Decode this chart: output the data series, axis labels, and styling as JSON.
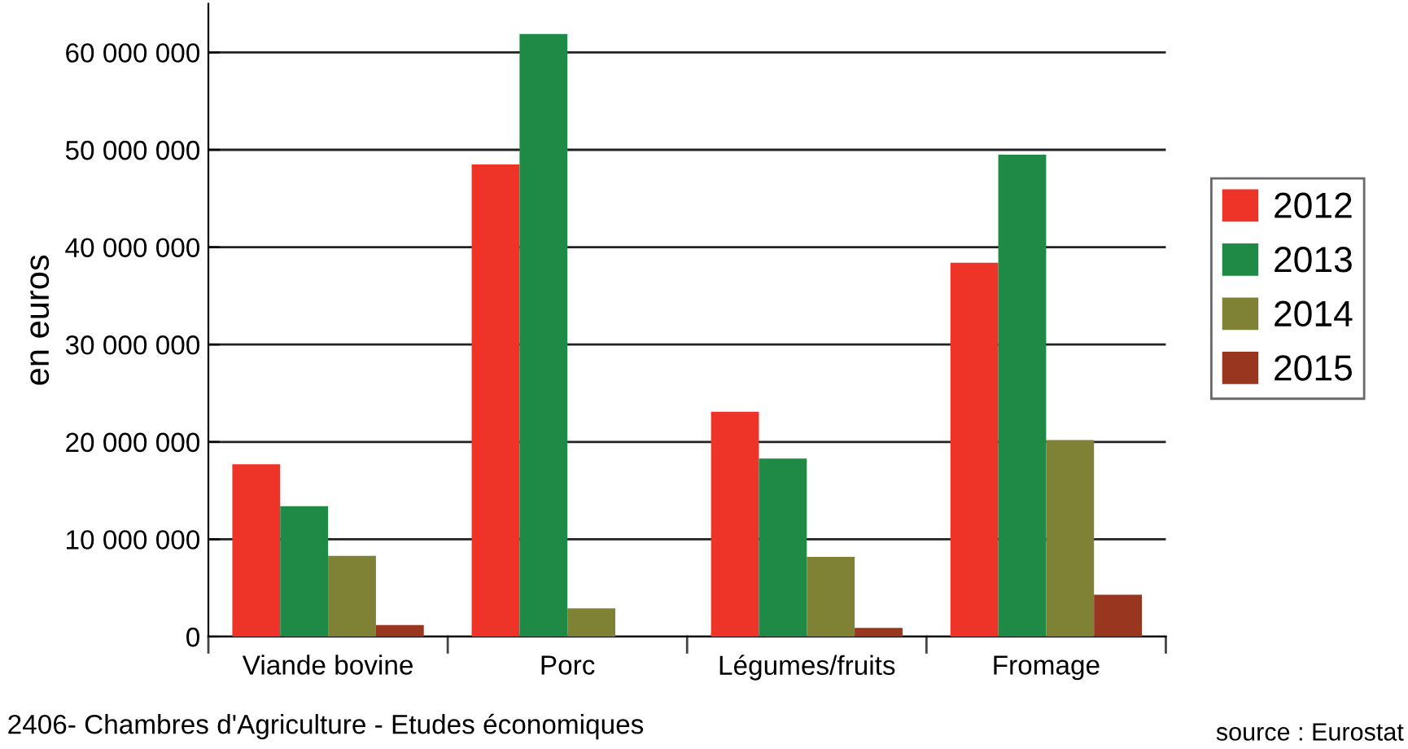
{
  "chart_data": {
    "type": "bar",
    "ylabel": "en euros",
    "categories": [
      "Viande bovine",
      "Porc",
      "Légumes/fruits",
      "Fromage"
    ],
    "series": [
      {
        "name": "2012",
        "color": "#ee3329",
        "values": [
          17700000,
          48500000,
          23100000,
          38400000
        ]
      },
      {
        "name": "2013",
        "color": "#1f8a45",
        "values": [
          13400000,
          61900000,
          18300000,
          49500000
        ]
      },
      {
        "name": "2014",
        "color": "#7f8234",
        "values": [
          8300000,
          2900000,
          8200000,
          20200000
        ]
      },
      {
        "name": "2015",
        "color": "#98361f",
        "values": [
          1200000,
          null,
          900000,
          4300000
        ]
      }
    ],
    "ylim": [
      0,
      65000000
    ],
    "yticks": [
      0,
      {
        "value": 10000000,
        "label": "10 000 000"
      },
      {
        "value": 20000000,
        "label": "20 000 000"
      },
      {
        "value": 30000000,
        "label": "30 000 000"
      },
      {
        "value": 40000000,
        "label": "40 000 000"
      },
      {
        "value": 50000000,
        "label": "50 000 000"
      },
      {
        "value": 60000000,
        "label": "60 000 000"
      }
    ],
    "grid": "y",
    "legend": "right",
    "annotations": [
      "2406- Chambres d'Agriculture - Etudes économiques",
      "source : Eurostat"
    ]
  }
}
